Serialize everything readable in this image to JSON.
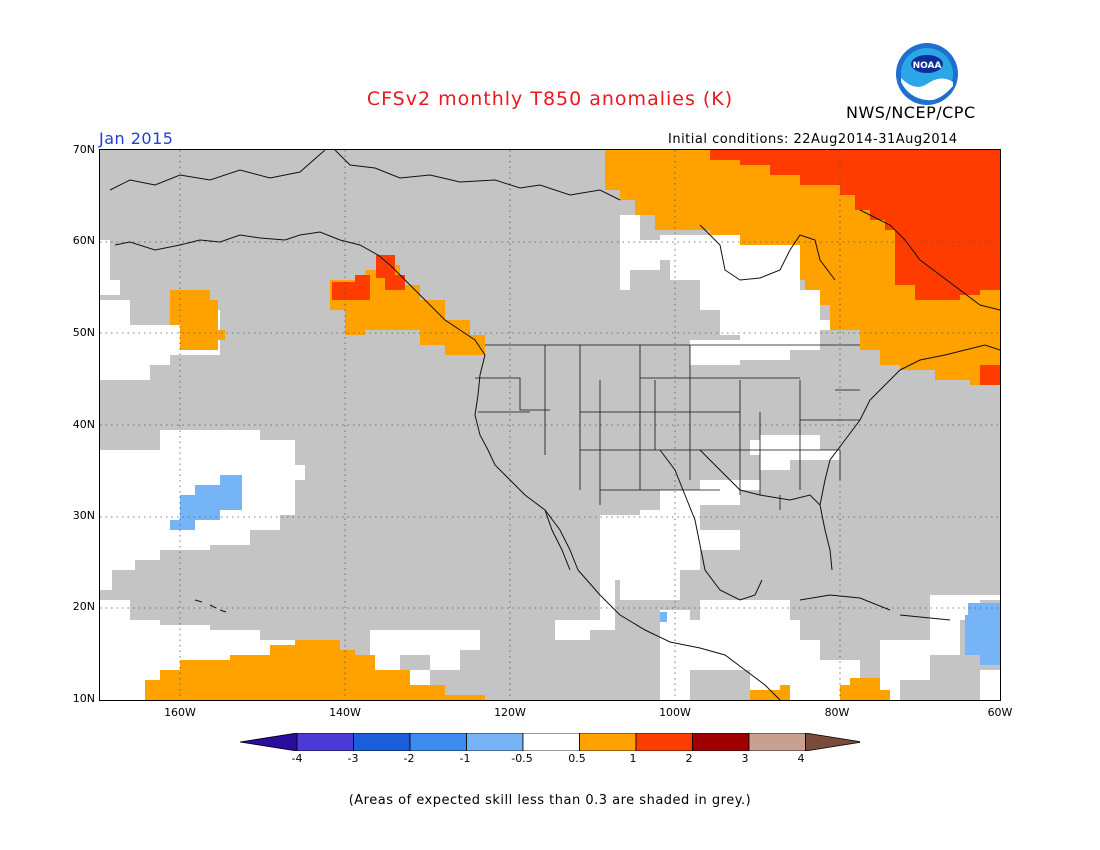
{
  "header": {
    "title": "CFSv2 monthly T850 anomalies (K)",
    "agency": "NWS/NCEP/CPC",
    "logo_text": "NOAA",
    "month": "Jan 2015",
    "initial_conditions": "Initial conditions: 22Aug2014-31Aug2014"
  },
  "map": {
    "lat_labels": [
      "70N",
      "60N",
      "50N",
      "40N",
      "30N",
      "20N",
      "10N"
    ],
    "lon_labels": [
      "160W",
      "140W",
      "120W",
      "100W",
      "80W",
      "60W"
    ],
    "region": "North America / NE Pacific",
    "extent": {
      "lon": [
        -172,
        -60
      ],
      "lat": [
        10,
        70
      ]
    }
  },
  "colorbar": {
    "tick_labels": [
      "-4",
      "-3",
      "-2",
      "-1",
      "-0.5",
      "0.5",
      "1",
      "2",
      "3",
      "4"
    ],
    "colors": [
      "#2a0d9c",
      "#4b3bd6",
      "#1a5fd9",
      "#3d8df0",
      "#75b5f7",
      "#ffffff",
      "#ffa200",
      "#ff3c00",
      "#a10000",
      "#c9a090",
      "#7a4a3a"
    ]
  },
  "legend_colors": {
    "grey_low_skill": "#c4c4c4",
    "positive_0_5_1": "#ffa200",
    "positive_1_2": "#ff3c00",
    "negative_0_5_1": "#75b5f7"
  },
  "footnote": "(Areas of expected skill less than 0.3 are shaded in grey.)"
}
